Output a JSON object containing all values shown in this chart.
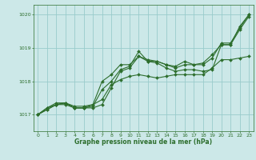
{
  "xlabel": "Graphe pression niveau de la mer (hPa)",
  "ylim": [
    1016.5,
    1020.3
  ],
  "xlim": [
    -0.5,
    23.5
  ],
  "yticks": [
    1017,
    1018,
    1019,
    1020
  ],
  "xticks": [
    0,
    1,
    2,
    3,
    4,
    5,
    6,
    7,
    8,
    9,
    10,
    11,
    12,
    13,
    14,
    15,
    16,
    17,
    18,
    19,
    20,
    21,
    22,
    23
  ],
  "background_color": "#cce8e8",
  "grid_color": "#99cccc",
  "line_color": "#2d6e2d",
  "tick_color": "#2d6e2d",
  "series": [
    [
      1017.0,
      1017.2,
      1017.3,
      1017.3,
      1017.2,
      1017.2,
      1017.2,
      1017.3,
      1017.8,
      1018.3,
      1018.4,
      1018.75,
      1018.6,
      1018.55,
      1018.4,
      1018.3,
      1018.35,
      1018.35,
      1018.3,
      1018.35,
      1019.1,
      1019.1,
      1019.55,
      1019.95
    ],
    [
      1017.0,
      1017.2,
      1017.35,
      1017.35,
      1017.2,
      1017.2,
      1017.25,
      1017.75,
      1018.0,
      1018.35,
      1018.45,
      1018.9,
      1018.6,
      1018.6,
      1018.5,
      1018.4,
      1018.5,
      1018.5,
      1018.5,
      1018.7,
      1019.15,
      1019.15,
      1019.6,
      1020.0
    ],
    [
      1017.0,
      1017.15,
      1017.3,
      1017.35,
      1017.2,
      1017.2,
      1017.3,
      1018.0,
      1018.2,
      1018.5,
      1018.5,
      1018.75,
      1018.65,
      1018.6,
      1018.5,
      1018.45,
      1018.6,
      1018.5,
      1018.55,
      1018.8,
      1019.1,
      1019.1,
      1019.65,
      1020.0
    ],
    [
      1017.0,
      1017.15,
      1017.3,
      1017.35,
      1017.25,
      1017.25,
      1017.3,
      1017.45,
      1017.9,
      1018.05,
      1018.15,
      1018.2,
      1018.15,
      1018.1,
      1018.15,
      1018.2,
      1018.2,
      1018.2,
      1018.2,
      1018.4,
      1018.65,
      1018.65,
      1018.7,
      1018.75
    ]
  ]
}
